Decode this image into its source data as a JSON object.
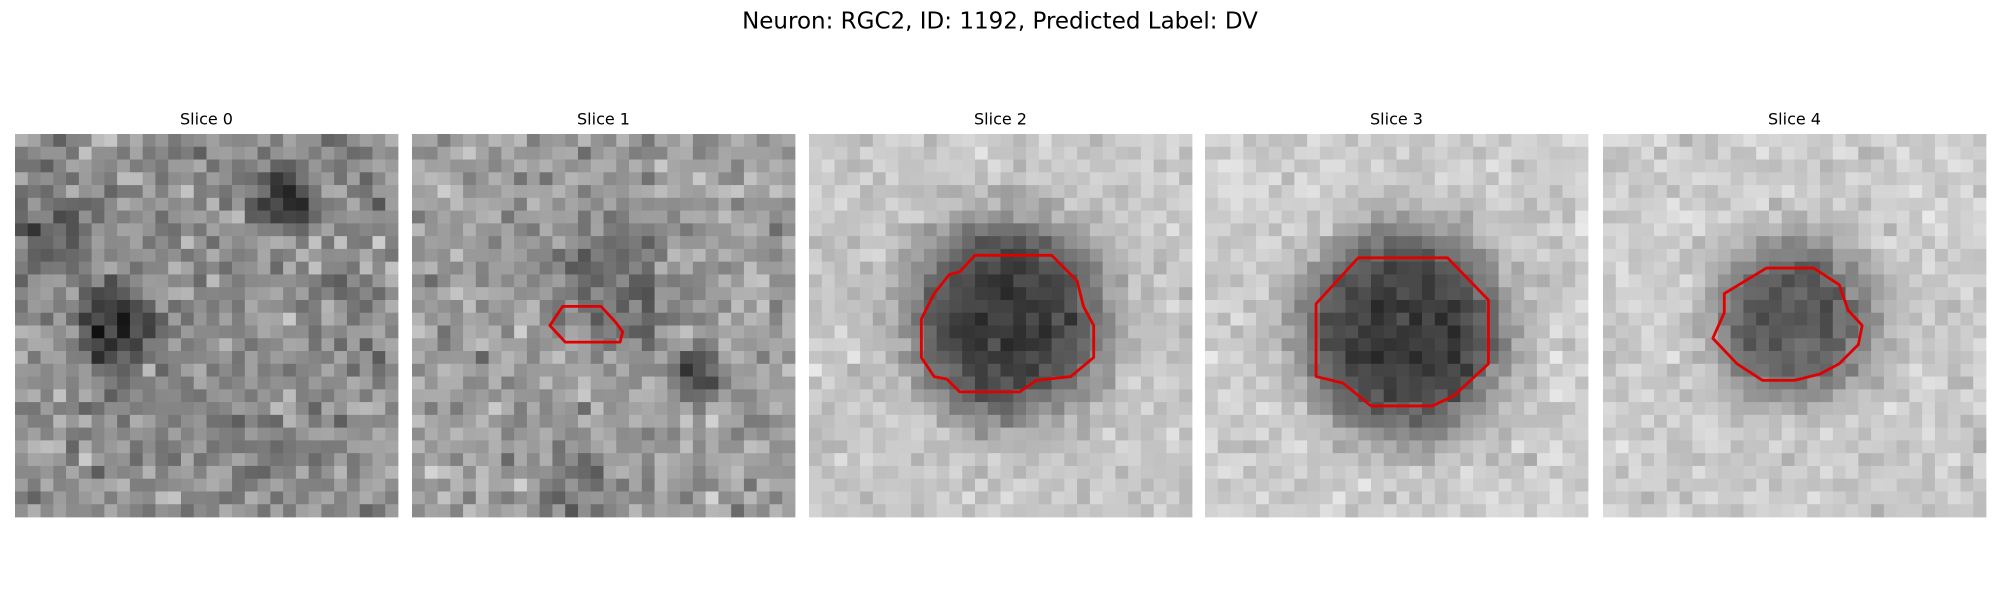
{
  "figure": {
    "title": "Neuron: RGC2, ID: 1192, Predicted Label: DV",
    "panels": [
      {
        "title": "Slice 0"
      },
      {
        "title": "Slice 1"
      },
      {
        "title": "Slice 2"
      },
      {
        "title": "Slice 3"
      },
      {
        "title": "Slice 4"
      }
    ]
  }
}
